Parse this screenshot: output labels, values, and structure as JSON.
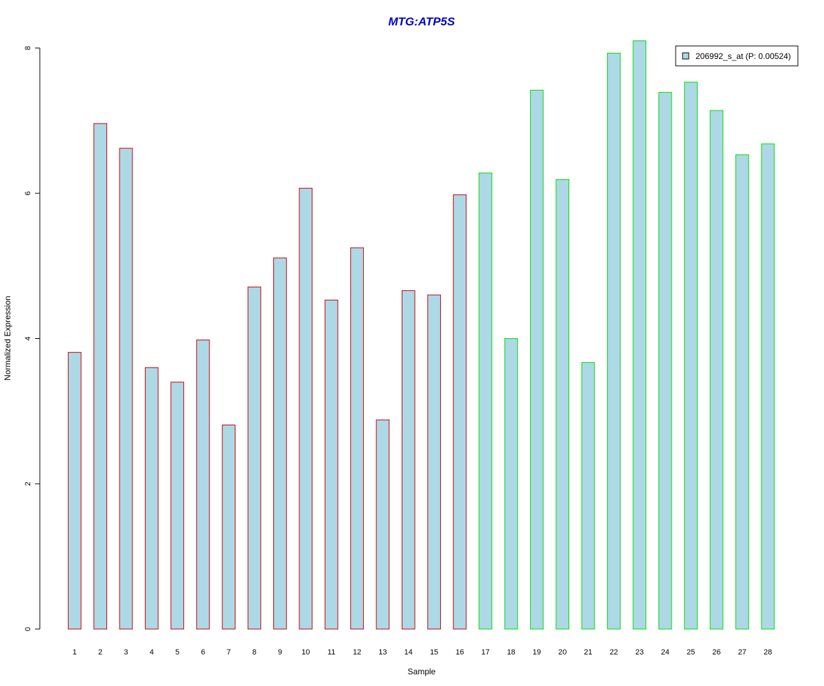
{
  "chart_data": {
    "type": "bar",
    "title": "MTG:ATP5S",
    "xlabel": "Sample",
    "ylabel": "Normalized Expression",
    "categories": [
      "1",
      "2",
      "3",
      "4",
      "5",
      "6",
      "7",
      "8",
      "9",
      "10",
      "11",
      "12",
      "13",
      "14",
      "15",
      "16",
      "17",
      "18",
      "19",
      "20",
      "21",
      "22",
      "23",
      "24",
      "25",
      "26",
      "27",
      "28"
    ],
    "series": [
      {
        "name": "206992_s_at (P: 0.00524)",
        "values": [
          3.81,
          6.96,
          6.62,
          3.6,
          3.4,
          3.98,
          2.81,
          4.71,
          5.11,
          6.07,
          4.53,
          5.25,
          2.88,
          4.66,
          4.6,
          5.98,
          6.28,
          4.0,
          7.42,
          6.19,
          3.67,
          7.93,
          8.1,
          7.39,
          7.53,
          7.14,
          6.53,
          6.68
        ]
      }
    ],
    "group_a": {
      "samples": [
        "1",
        "2",
        "3",
        "4",
        "5",
        "6",
        "7",
        "8",
        "9",
        "10",
        "11",
        "12",
        "13",
        "14",
        "15",
        "16"
      ],
      "border_color": "#cc0000"
    },
    "group_b": {
      "samples": [
        "17",
        "18",
        "19",
        "20",
        "21",
        "22",
        "23",
        "24",
        "25",
        "26",
        "27",
        "28"
      ],
      "border_color": "#00dd00"
    },
    "bar_fill": "#add8e6",
    "yticks": [
      "0",
      "2",
      "4",
      "6",
      "8"
    ],
    "ylim": [
      0,
      8.1
    ],
    "grid": false,
    "legend_position": "top-right"
  }
}
